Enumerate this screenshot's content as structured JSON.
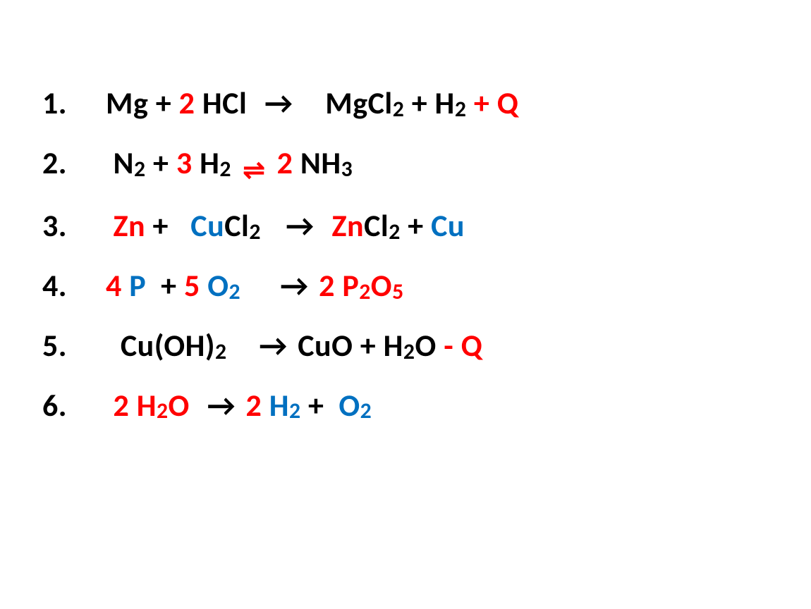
{
  "colors": {
    "black": "#000000",
    "red": "#ff0000",
    "blue": "#0070c0",
    "background": "#ffffff"
  },
  "typography": {
    "font_family": "Calibri, Arial, sans-serif",
    "font_size_pt": 33,
    "font_weight": 900,
    "subscript_scale": 0.72
  },
  "equations": [
    {
      "number": "1.",
      "tokens": [
        {
          "text": "Mg + ",
          "color": "black"
        },
        {
          "text": "2 ",
          "color": "red"
        },
        {
          "text": "HCl  ",
          "color": "black"
        },
        {
          "type": "arrow",
          "text": "→",
          "color": "black"
        },
        {
          "text": "    MgCl",
          "color": "black"
        },
        {
          "text": "2",
          "color": "black",
          "sub": true
        },
        {
          "text": " + H",
          "color": "black"
        },
        {
          "text": "2",
          "color": "black",
          "sub": true
        },
        {
          "text": " + Q",
          "color": "red"
        }
      ]
    },
    {
      "number": "2.",
      "tokens": [
        {
          "text": " N",
          "color": "black"
        },
        {
          "text": "2",
          "color": "black",
          "sub": true
        },
        {
          "text": " + ",
          "color": "black"
        },
        {
          "text": "3",
          "color": "red"
        },
        {
          "text": " H",
          "color": "black"
        },
        {
          "text": "2",
          "color": "black",
          "sub": true
        },
        {
          "text": " ",
          "color": "black"
        },
        {
          "type": "equilibrium",
          "color": "red"
        },
        {
          "text": " ",
          "color": "black"
        },
        {
          "text": "2 ",
          "color": "red"
        },
        {
          "text": "NH",
          "color": "black"
        },
        {
          "text": "3",
          "color": "black",
          "sub": true
        }
      ]
    },
    {
      "number": "3.",
      "tokens": [
        {
          "text": " Zn",
          "color": "red"
        },
        {
          "text": " +   ",
          "color": "black"
        },
        {
          "text": "CU",
          "color": "blue"
        },
        {
          "text": "Cl",
          "color": "black"
        },
        {
          "text": "2",
          "color": "black",
          "sub": true
        },
        {
          "text": "   ",
          "color": "black"
        },
        {
          "type": "arrow",
          "text": "→",
          "color": "black"
        },
        {
          "text": "  ",
          "color": "black"
        },
        {
          "text": "ZN",
          "color": "red"
        },
        {
          "text": "Cl",
          "color": "black"
        },
        {
          "text": "2",
          "color": "black",
          "sub": true
        },
        {
          "text": " + ",
          "color": "black"
        },
        {
          "text": "CU",
          "color": "blue"
        }
      ]
    },
    {
      "number": "4.",
      "tokens": [
        {
          "text": "4 ",
          "color": "red"
        },
        {
          "text": "P",
          "color": "blue"
        },
        {
          "text": "  + ",
          "color": "black"
        },
        {
          "text": "5 ",
          "color": "red"
        },
        {
          "text": "O",
          "color": "blue"
        },
        {
          "text": "2",
          "color": "blue",
          "sub": true
        },
        {
          "text": "     ",
          "color": "black"
        },
        {
          "type": "arrow",
          "text": "→",
          "color": "black"
        },
        {
          "text": " ",
          "color": "black"
        },
        {
          "text": "2 ",
          "color": "red"
        },
        {
          "text": "P",
          "color": "red"
        },
        {
          "text": "2",
          "color": "red",
          "sub": true
        },
        {
          "text": "O",
          "color": "red"
        },
        {
          "text": "5",
          "color": "red",
          "sub": true
        }
      ]
    },
    {
      "number": "5.",
      "tokens": [
        {
          "text": "  Cu(OH)",
          "color": "black"
        },
        {
          "text": "2",
          "color": "black",
          "sub": true
        },
        {
          "text": "    ",
          "color": "black"
        },
        {
          "type": "arrow",
          "text": "→",
          "color": "black"
        },
        {
          "text": " CuO + H",
          "color": "black"
        },
        {
          "text": "2",
          "color": "black",
          "sub": true
        },
        {
          "text": "O ",
          "color": "black"
        },
        {
          "text": "- Q",
          "color": "red"
        }
      ]
    },
    {
      "number": "6.",
      "tokens": [
        {
          "text": " 2 ",
          "color": "red"
        },
        {
          "text": "H",
          "color": "red"
        },
        {
          "text": "2",
          "color": "red",
          "sub": true
        },
        {
          "text": "O",
          "color": "red"
        },
        {
          "text": "  ",
          "color": "black"
        },
        {
          "type": "arrow",
          "text": "→",
          "color": "black"
        },
        {
          "text": " ",
          "color": "black"
        },
        {
          "text": "2 ",
          "color": "red"
        },
        {
          "text": "H",
          "color": "blue"
        },
        {
          "text": "2",
          "color": "blue",
          "sub": true
        },
        {
          "text": " +  ",
          "color": "black"
        },
        {
          "text": "O",
          "color": "blue"
        },
        {
          "text": "2",
          "color": "blue",
          "sub": true
        }
      ]
    }
  ]
}
